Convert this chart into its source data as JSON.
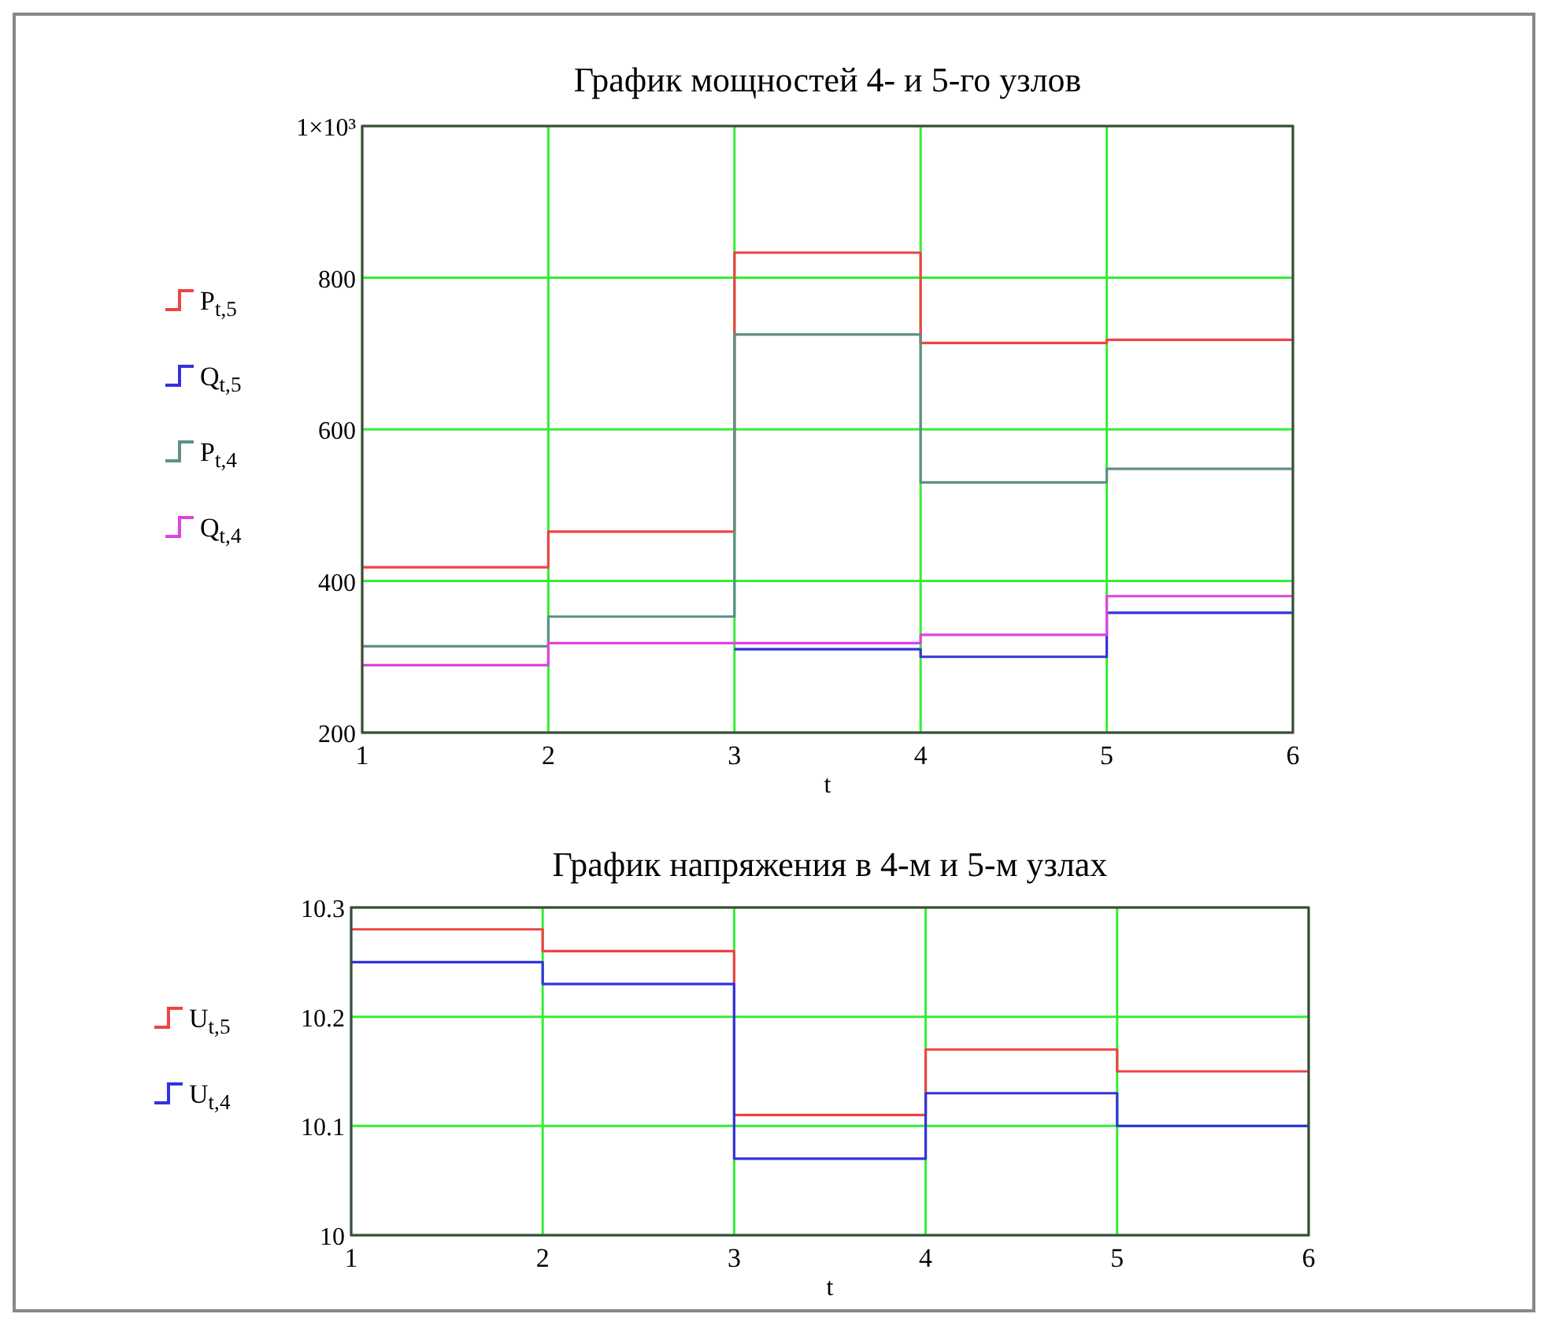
{
  "chart_data": [
    {
      "type": "step",
      "title": "График мощностей 4- и 5-го узлов",
      "xlabel": "t",
      "x": [
        1,
        2,
        3,
        4,
        5,
        6
      ],
      "xlim": [
        1,
        6
      ],
      "xticks": [
        1,
        2,
        3,
        4,
        5,
        6
      ],
      "ylim": [
        200,
        1000
      ],
      "yticks": [
        200,
        400,
        600,
        800,
        {
          "value": 1000,
          "label": "1×10³"
        }
      ],
      "grid": true,
      "legend": "left",
      "series": [
        {
          "name": "P$_{t,5}$",
          "color": "#ee4444",
          "values": [
            418,
            465,
            833,
            714,
            718,
            718
          ]
        },
        {
          "name": "Q$_{t,5}$",
          "color": "#3333dd",
          "values": [
            null,
            null,
            310,
            300,
            358,
            358
          ]
        },
        {
          "name": "P$_{t,4}$",
          "color": "#5f8f88",
          "values": [
            314,
            353,
            725,
            530,
            548,
            548
          ]
        },
        {
          "name": "Q$_{t,4}$",
          "color": "#dd44dd",
          "values": [
            289,
            318,
            318,
            329,
            380,
            380
          ]
        }
      ]
    },
    {
      "type": "step",
      "title": "График напряжения в 4-м и 5-м узлах",
      "xlabel": "t",
      "x": [
        1,
        2,
        3,
        4,
        5,
        6
      ],
      "xlim": [
        1,
        6
      ],
      "xticks": [
        1,
        2,
        3,
        4,
        5,
        6
      ],
      "ylim": [
        10,
        10.3
      ],
      "yticks": [
        10,
        10.1,
        10.2,
        10.3
      ],
      "grid": true,
      "legend": "left",
      "series": [
        {
          "name": "U$_{t,5}$",
          "color": "#ee4444",
          "values": [
            10.28,
            10.26,
            10.11,
            10.17,
            10.15,
            10.15
          ]
        },
        {
          "name": "U$_{t,4}$",
          "color": "#3333dd",
          "values": [
            10.25,
            10.23,
            10.07,
            10.13,
            10.1,
            10.1
          ]
        }
      ]
    }
  ]
}
